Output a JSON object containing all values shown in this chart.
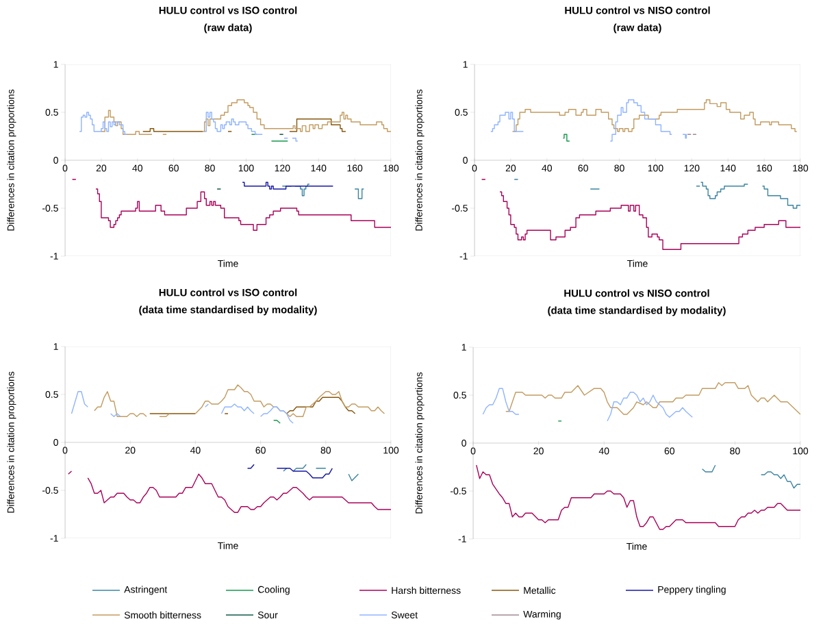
{
  "chart_data": [
    {
      "type": "step",
      "title": "HULU control vs ISO control",
      "subtitle": "(raw data)",
      "xlabel": "Time",
      "ylabel": "Differences in citation proportions",
      "xlim": [
        0,
        180
      ],
      "ylim": [
        -1,
        1
      ],
      "xticks": [
        0,
        20,
        40,
        60,
        80,
        100,
        120,
        140,
        160,
        180
      ],
      "yticks": [
        -1,
        -0.5,
        0,
        0.5,
        1
      ],
      "marker": "none",
      "legend": "bottom",
      "series": [
        {
          "name": "Astringent",
          "color": "#3a84a0",
          "x": [
            120,
            125,
            126,
            127,
            130,
            131,
            132,
            133,
            134,
            135,
            145,
            160,
            162,
            164,
            165
          ],
          "values": [
            -0.27,
            -0.27,
            null,
            -0.27,
            -0.3,
            -0.37,
            -0.3,
            -0.27,
            -0.25,
            -0.25,
            null,
            -0.3,
            -0.4,
            -0.3,
            -0.3
          ]
        },
        {
          "name": "Cooling",
          "color": "#14984c",
          "x": [
            103,
            106,
            110,
            114,
            123
          ],
          "values": [
            0.27,
            0.27,
            null,
            0.2,
            0.2
          ]
        },
        {
          "name": "Harsh bitterness",
          "color": "#a80058",
          "x": [
            4,
            6,
            10,
            17,
            18,
            19,
            20,
            24,
            25,
            27,
            28,
            29,
            30,
            31,
            39,
            40,
            41,
            50,
            53,
            55,
            67,
            73,
            75,
            77,
            78,
            80,
            81,
            82,
            83,
            86,
            88,
            96,
            97,
            104,
            106,
            111,
            113,
            115,
            119,
            128,
            129,
            158,
            171,
            180
          ],
          "values": [
            -0.2,
            -0.2,
            null,
            -0.3,
            -0.35,
            -0.43,
            -0.6,
            -0.63,
            -0.7,
            -0.67,
            -0.63,
            -0.6,
            -0.57,
            -0.53,
            -0.5,
            -0.43,
            -0.53,
            -0.47,
            -0.53,
            -0.57,
            -0.5,
            -0.43,
            -0.33,
            -0.4,
            -0.47,
            -0.43,
            -0.47,
            -0.43,
            -0.47,
            -0.5,
            -0.6,
            -0.63,
            -0.67,
            -0.73,
            -0.67,
            -0.6,
            -0.57,
            -0.53,
            -0.5,
            -0.53,
            -0.57,
            -0.63,
            -0.7,
            -0.7
          ]
        },
        {
          "name": "Metallic",
          "color": "#86560c",
          "x": [
            43,
            47,
            49,
            76,
            83,
            90,
            92,
            100,
            124,
            128,
            147,
            152,
            153,
            155
          ],
          "values": [
            0.3,
            0.33,
            0.3,
            0.3,
            null,
            0.3,
            0.3,
            null,
            0.3,
            0.43,
            0.37,
            0.33,
            0.3,
            0.3
          ]
        },
        {
          "name": "Peppery tingling",
          "color": "#1616a6",
          "x": [
            98,
            99,
            111,
            112,
            113,
            114,
            115,
            122,
            148
          ],
          "values": [
            -0.23,
            -0.27,
            -0.23,
            -0.27,
            -0.3,
            -0.27,
            -0.3,
            -0.27,
            -0.27
          ]
        },
        {
          "name": "Smooth bitterness",
          "color": "#c29b5f",
          "x": [
            20,
            22,
            24,
            25,
            27,
            28,
            29,
            31,
            32,
            39,
            41,
            48,
            51,
            54,
            56,
            65,
            76,
            77,
            78,
            79,
            80,
            86,
            88,
            90,
            92,
            95,
            99,
            101,
            102,
            104,
            106,
            108,
            110,
            126,
            127,
            130,
            131,
            133,
            135,
            137,
            138,
            140,
            142,
            145,
            152,
            153,
            154,
            155,
            156,
            158,
            163,
            172,
            175,
            176,
            178,
            180
          ],
          "values": [
            0.3,
            0.45,
            0.52,
            0.45,
            0.4,
            0.36,
            0.4,
            0.33,
            0.27,
            0.3,
            0.27,
            0.27,
            null,
            0.27,
            0.27,
            null,
            0.3,
            0.4,
            0.43,
            0.36,
            0.43,
            0.47,
            0.5,
            0.57,
            0.6,
            0.63,
            0.6,
            0.57,
            0.55,
            0.5,
            0.43,
            0.37,
            0.33,
            0.36,
            0.33,
            0.3,
            0.36,
            0.3,
            0.37,
            0.33,
            0.37,
            0.33,
            0.37,
            0.4,
            0.47,
            0.5,
            0.43,
            0.47,
            0.43,
            0.4,
            0.37,
            0.4,
            0.37,
            0.33,
            0.3,
            0.3
          ]
        },
        {
          "name": "Sour",
          "color": "#0e5a48",
          "x": [
            84,
            86,
            100,
            118.5,
            120.5
          ],
          "values": [
            -0.3,
            -0.3,
            null,
            0.27,
            0.27
          ]
        },
        {
          "name": "Sweet",
          "color": "#8fb4ff",
          "x": [
            8,
            9,
            10,
            11,
            12,
            13,
            14,
            15,
            16,
            20,
            21,
            22,
            23,
            24,
            25,
            26,
            27,
            28,
            30,
            32,
            33,
            34,
            50,
            77,
            78,
            79,
            80,
            81,
            82,
            83,
            84,
            86,
            87,
            88,
            89,
            91,
            92,
            93,
            94,
            96,
            100,
            101,
            103,
            105,
            109,
            115,
            121,
            123,
            124,
            125.5,
            127.5,
            128.5
          ],
          "values": [
            0.3,
            0.45,
            0.47,
            0.45,
            0.5,
            0.47,
            0.43,
            0.37,
            0.3,
            0.33,
            0.4,
            0.33,
            0.3,
            0.4,
            0.35,
            0.4,
            0.37,
            0.4,
            0.37,
            0.3,
            0.27,
            0.27,
            null,
            0.3,
            0.5,
            0.45,
            0.5,
            0.43,
            0.4,
            0.33,
            0.3,
            0.37,
            0.33,
            0.37,
            0.4,
            0.37,
            0.43,
            0.4,
            0.37,
            0.4,
            0.37,
            0.33,
            0.3,
            0.27,
            0.27,
            null,
            0.23,
            0.23,
            null,
            0.23,
            0.2,
            0.2
          ]
        }
      ]
    },
    {
      "type": "step",
      "title": "HULU control vs NISO control",
      "subtitle": "(raw data)",
      "xlabel": "Time",
      "ylabel": "Differences in citation proportions",
      "xlim": [
        0,
        180
      ],
      "ylim": [
        -1,
        1
      ],
      "xticks": [
        0,
        20,
        40,
        60,
        80,
        100,
        120,
        140,
        160,
        180
      ],
      "yticks": [
        -1,
        -0.5,
        0,
        0.5,
        1
      ],
      "marker": "none",
      "legend": "bottom",
      "series": [
        {
          "color": "#3a84a0",
          "x": [
            22,
            24,
            40,
            64,
            69,
            100,
            122.5,
            124.5,
            124.7,
            125,
            126,
            128,
            129,
            130,
            133,
            134,
            136,
            138,
            149,
            151,
            155,
            159,
            160,
            162,
            169,
            173,
            176,
            178,
            180
          ],
          "values": [
            -0.2,
            -0.2,
            null,
            -0.3,
            -0.3,
            null,
            -0.27,
            -0.27,
            null,
            -0.23,
            -0.27,
            -0.3,
            -0.37,
            -0.4,
            -0.37,
            -0.33,
            -0.3,
            -0.27,
            -0.25,
            -0.25,
            null,
            -0.27,
            -0.3,
            -0.37,
            -0.4,
            -0.47,
            -0.5,
            -0.47,
            -0.47
          ]
        },
        {
          "color": "#14984c",
          "x": [
            49,
            49.5,
            50.5,
            51,
            52.5
          ],
          "values": [
            0.23,
            0.27,
            0.27,
            0.2,
            0.2
          ]
        },
        {
          "color": "#a80058",
          "x": [
            4,
            6,
            10,
            14,
            15,
            16,
            18,
            19,
            20,
            22,
            23,
            24,
            26,
            27,
            28,
            29,
            42,
            45,
            50,
            53,
            56,
            58,
            67,
            75,
            81,
            85,
            86,
            88,
            89,
            91,
            93,
            95,
            96,
            98,
            101,
            102,
            104,
            114,
            146,
            148,
            151,
            155,
            160,
            168,
            172,
            180
          ],
          "values": [
            -0.2,
            -0.2,
            null,
            -0.33,
            -0.37,
            -0.43,
            -0.5,
            -0.57,
            -0.67,
            -0.7,
            -0.77,
            -0.83,
            -0.8,
            -0.83,
            -0.77,
            -0.73,
            -0.83,
            -0.8,
            -0.73,
            -0.7,
            -0.6,
            -0.57,
            -0.53,
            -0.5,
            -0.47,
            -0.53,
            -0.47,
            -0.53,
            -0.47,
            -0.57,
            -0.6,
            -0.7,
            -0.8,
            -0.77,
            -0.8,
            -0.83,
            -0.93,
            -0.87,
            -0.8,
            -0.77,
            -0.73,
            -0.7,
            -0.67,
            -0.63,
            -0.7,
            -0.7
          ]
        },
        {
          "color": "#c29b5f",
          "x": [
            21,
            23,
            24,
            25,
            28,
            31,
            47,
            50,
            52,
            56,
            59,
            60,
            62,
            67,
            70,
            74,
            76,
            77,
            79,
            80,
            82,
            83,
            85,
            87,
            88,
            91,
            96,
            102,
            103,
            112,
            127,
            128,
            130,
            134,
            136,
            139,
            141,
            147,
            149,
            152,
            154,
            155,
            158,
            163,
            164,
            168,
            175,
            177,
            178
          ],
          "values": [
            0.3,
            0.37,
            0.43,
            0.5,
            0.53,
            0.5,
            0.47,
            0.5,
            0.53,
            0.47,
            0.5,
            0.53,
            0.47,
            0.53,
            0.5,
            0.43,
            0.37,
            0.33,
            0.3,
            0.33,
            0.3,
            0.33,
            0.3,
            0.33,
            0.43,
            0.47,
            0.43,
            0.47,
            0.5,
            0.53,
            0.6,
            0.63,
            0.59,
            0.56,
            0.6,
            0.53,
            0.5,
            0.43,
            0.47,
            0.5,
            0.43,
            0.37,
            0.4,
            0.37,
            0.4,
            0.37,
            0.33,
            0.3,
            0.3
          ]
        },
        {
          "color": "#8fb4ff",
          "x": [
            9,
            10,
            11,
            13,
            14,
            17,
            19,
            20,
            21,
            22,
            27,
            50,
            75,
            76,
            78,
            79,
            81,
            82,
            84,
            85,
            88,
            90,
            92,
            94,
            98,
            100,
            103,
            108,
            109,
            112,
            115,
            116.5,
            117,
            117.2
          ],
          "values": [
            0.3,
            0.33,
            0.37,
            0.4,
            0.47,
            0.5,
            0.43,
            0.5,
            0.43,
            0.3,
            0.3,
            null,
            0.2,
            0.27,
            0.4,
            0.47,
            0.55,
            0.5,
            0.6,
            0.63,
            0.6,
            0.57,
            0.5,
            0.43,
            0.43,
            0.37,
            0.3,
            0.27,
            0.27,
            null,
            0.27,
            0.23,
            0.27,
            0.27
          ]
        },
        {
          "name": "Warming",
          "color": "#a08896",
          "x": [
            117.6,
            119.6,
            120.1,
            120.6,
            122.5
          ],
          "values": [
            0.27,
            0.27,
            null,
            0.27,
            0.27
          ]
        }
      ]
    },
    {
      "type": "line",
      "title": "HULU control vs ISO control",
      "subtitle": "(data time standardised by modality)",
      "xlabel": "Time",
      "ylabel": "Differences in citation proportions",
      "xlim": [
        0,
        100
      ],
      "ylim": [
        -1,
        1
      ],
      "xticks": [
        0,
        20,
        40,
        60,
        80,
        100
      ],
      "yticks": [
        -1,
        -0.5,
        0,
        0.5,
        1
      ],
      "marker": "none",
      "series": [
        {
          "color": "#3a84a0",
          "x": [
            67,
            68,
            69,
            70,
            71,
            73,
            74,
            75,
            77,
            80,
            84,
            87,
            88,
            90
          ],
          "values": [
            -0.3,
            -0.27,
            null,
            -0.3,
            -0.27,
            -0.27,
            -0.23,
            null,
            -0.27,
            -0.27,
            null,
            -0.33,
            -0.4,
            -0.33
          ]
        },
        {
          "color": "#14984c",
          "x": [
            64,
            65,
            66
          ],
          "values": [
            0.23,
            0.23,
            0.2
          ]
        },
        {
          "color": "#a80058",
          "x": [
            1,
            2,
            4,
            7,
            8,
            9,
            10,
            11,
            12,
            13,
            14,
            15,
            16,
            18,
            19,
            20,
            21,
            22,
            23,
            24,
            25,
            26,
            27,
            28,
            29,
            34,
            35,
            36,
            37,
            39,
            40,
            41,
            42,
            43,
            45,
            46,
            47,
            48,
            49,
            50,
            51,
            52,
            53,
            54,
            56,
            57,
            58,
            59,
            60,
            61,
            62,
            63,
            64,
            65,
            66,
            67,
            68,
            69,
            70,
            71,
            72,
            73,
            74,
            75,
            76,
            85,
            86,
            87,
            94,
            95,
            96,
            100
          ],
          "values": [
            -0.33,
            -0.3,
            null,
            -0.37,
            -0.43,
            -0.53,
            -0.53,
            -0.5,
            -0.63,
            -0.6,
            -0.57,
            -0.57,
            -0.53,
            -0.53,
            -0.57,
            -0.6,
            -0.6,
            -0.63,
            -0.63,
            -0.57,
            -0.53,
            -0.47,
            -0.47,
            -0.5,
            -0.57,
            -0.57,
            -0.53,
            -0.53,
            -0.47,
            -0.47,
            -0.4,
            -0.33,
            -0.37,
            -0.43,
            -0.43,
            -0.5,
            -0.57,
            -0.57,
            -0.6,
            -0.67,
            -0.7,
            -0.73,
            -0.73,
            -0.67,
            -0.67,
            -0.7,
            -0.7,
            -0.67,
            -0.67,
            -0.63,
            -0.6,
            -0.57,
            -0.57,
            -0.6,
            -0.57,
            -0.53,
            -0.53,
            -0.5,
            -0.47,
            -0.47,
            -0.5,
            -0.53,
            -0.57,
            -0.6,
            -0.57,
            -0.57,
            -0.6,
            -0.63,
            -0.63,
            -0.67,
            -0.7,
            -0.7
          ]
        },
        {
          "color": "#86560c",
          "x": [
            26,
            40,
            45,
            49,
            50,
            60,
            68,
            69,
            70,
            71,
            76,
            77,
            78,
            79,
            84,
            85,
            86,
            87,
            88,
            89
          ],
          "values": [
            0.3,
            0.3,
            null,
            0.3,
            0.3,
            null,
            0.3,
            0.33,
            0.33,
            0.37,
            0.37,
            0.43,
            0.43,
            0.47,
            0.47,
            0.43,
            0.37,
            0.33,
            0.33,
            0.3
          ]
        },
        {
          "color": "#1616a6",
          "x": [
            56,
            57,
            58,
            61,
            65,
            69,
            70,
            74,
            75,
            76,
            79,
            80,
            81,
            82
          ],
          "values": [
            -0.27,
            -0.27,
            -0.23,
            null,
            -0.27,
            -0.27,
            -0.3,
            -0.3,
            -0.33,
            -0.37,
            -0.37,
            -0.33,
            -0.33,
            -0.27
          ]
        },
        {
          "color": "#c29b5f",
          "x": [
            9,
            10,
            11,
            12,
            13,
            14,
            15,
            16,
            19,
            20,
            21,
            22,
            23,
            24,
            25,
            27,
            29,
            31,
            32,
            36,
            40,
            42,
            43,
            44,
            45,
            47,
            48,
            49,
            50,
            52,
            53,
            54,
            55,
            56,
            57,
            58,
            60,
            61,
            62,
            63,
            64,
            65,
            66,
            67,
            68,
            69,
            70,
            71,
            73,
            74,
            75,
            76,
            77,
            78,
            79,
            80,
            81,
            82,
            83,
            84,
            85,
            86,
            87,
            88,
            89,
            90,
            93,
            94,
            95,
            96,
            97,
            98
          ],
          "values": [
            0.33,
            0.37,
            0.37,
            0.47,
            0.53,
            0.43,
            0.43,
            0.27,
            0.27,
            0.3,
            0.3,
            0.27,
            0.3,
            0.3,
            0.27,
            null,
            0.27,
            0.27,
            0.3,
            null,
            0.3,
            0.37,
            0.43,
            0.43,
            0.4,
            0.4,
            0.43,
            0.47,
            0.55,
            0.55,
            0.6,
            0.57,
            0.53,
            0.53,
            0.5,
            0.43,
            0.43,
            0.37,
            0.4,
            0.4,
            0.37,
            0.37,
            0.33,
            0.33,
            0.3,
            0.27,
            0.3,
            0.27,
            0.27,
            0.37,
            0.37,
            0.4,
            0.43,
            0.47,
            0.5,
            0.53,
            0.53,
            0.5,
            0.5,
            0.53,
            0.43,
            0.37,
            0.37,
            0.4,
            0.4,
            0.37,
            0.37,
            0.33,
            0.33,
            0.37,
            0.33,
            0.3
          ]
        },
        {
          "color": "#8fb4ff",
          "x": [
            2,
            4,
            5,
            6,
            7,
            10,
            14,
            15,
            16,
            17,
            30,
            43,
            44,
            46,
            48,
            49,
            51,
            52,
            53,
            54,
            55,
            56,
            57,
            58,
            59,
            60,
            61,
            62,
            63,
            64,
            65,
            66,
            67,
            68,
            69,
            70
          ],
          "values": [
            0.3,
            0.53,
            0.53,
            0.4,
            0.37,
            null,
            0.3,
            0.27,
            0.3,
            0.27,
            null,
            0.37,
            0.4,
            null,
            0.3,
            0.37,
            0.37,
            0.4,
            0.37,
            0.37,
            0.33,
            0.37,
            0.33,
            0.3,
            null,
            0.27,
            0.3,
            0.3,
            0.33,
            0.37,
            0.37,
            0.33,
            0.33,
            0.3,
            0.23,
            0.2
          ]
        }
      ]
    },
    {
      "type": "line",
      "title": "HULU control vs NISO control",
      "subtitle": "(data time standardised by modality)",
      "xlabel": "Time",
      "ylabel": "Differences in citation proportions",
      "xlim": [
        0,
        100
      ],
      "ylim": [
        -1,
        1
      ],
      "xticks": [
        0,
        20,
        40,
        60,
        80,
        100
      ],
      "yticks": [
        -1,
        -0.5,
        0,
        0.5,
        1
      ],
      "marker": "none",
      "series": [
        {
          "color": "#3a84a0",
          "x": [
            70,
            71,
            73,
            74,
            80,
            88,
            89,
            90,
            91,
            92,
            93,
            94,
            95,
            96,
            97,
            98,
            99,
            100
          ],
          "values": [
            -0.27,
            -0.3,
            -0.3,
            -0.23,
            null,
            -0.33,
            -0.33,
            -0.3,
            -0.3,
            -0.33,
            -0.33,
            -0.37,
            -0.33,
            -0.4,
            -0.4,
            -0.47,
            -0.43,
            -0.43
          ]
        },
        {
          "color": "#14984c",
          "x": [
            26,
            27
          ],
          "values": [
            0.23,
            0.23
          ]
        },
        {
          "color": "#a80058",
          "x": [
            1,
            2,
            3,
            4,
            5,
            6,
            8,
            9,
            10,
            11,
            12,
            13,
            14,
            15,
            16,
            18,
            20,
            21,
            22,
            23,
            26,
            27,
            28,
            29,
            30,
            36,
            37,
            40,
            41,
            42,
            43,
            45,
            46,
            47,
            48,
            49,
            50,
            51,
            52,
            53,
            54,
            55,
            57,
            58,
            59,
            60,
            62,
            64,
            65,
            74,
            75,
            80,
            81,
            82,
            83,
            84,
            85,
            86,
            87,
            88,
            89,
            90,
            92,
            93,
            94,
            96,
            100
          ],
          "values": [
            -0.23,
            -0.37,
            -0.3,
            -0.33,
            -0.33,
            -0.43,
            -0.53,
            -0.57,
            -0.63,
            -0.63,
            -0.77,
            -0.73,
            -0.77,
            -0.77,
            -0.73,
            -0.73,
            -0.8,
            -0.8,
            -0.83,
            -0.8,
            -0.8,
            -0.7,
            -0.67,
            -0.67,
            -0.57,
            -0.57,
            -0.53,
            -0.53,
            -0.5,
            -0.5,
            -0.53,
            -0.53,
            -0.57,
            -0.67,
            -0.6,
            -0.6,
            -0.77,
            -0.87,
            -0.87,
            -0.83,
            -0.77,
            -0.77,
            -0.9,
            -0.9,
            -0.87,
            -0.87,
            -0.8,
            -0.8,
            -0.83,
            -0.83,
            -0.87,
            -0.87,
            -0.8,
            -0.77,
            -0.77,
            -0.73,
            -0.73,
            -0.7,
            -0.73,
            -0.7,
            -0.7,
            -0.67,
            -0.67,
            -0.63,
            -0.63,
            -0.7,
            -0.7
          ]
        },
        {
          "color": "#c29b5f",
          "x": [
            10,
            11,
            13,
            15,
            16,
            21,
            22,
            23,
            24,
            25,
            27,
            28,
            30,
            32,
            34,
            37,
            39,
            40,
            41,
            42,
            44,
            46,
            47,
            49,
            50,
            52,
            53,
            55,
            56,
            57,
            61,
            62,
            64,
            65,
            69,
            70,
            74,
            75,
            76,
            77,
            80,
            81,
            83,
            84,
            85,
            87,
            88,
            89,
            90,
            92,
            94,
            96,
            100
          ],
          "values": [
            0.33,
            0.33,
            0.53,
            0.53,
            0.5,
            0.5,
            0.47,
            0.5,
            0.5,
            0.47,
            0.47,
            0.53,
            0.53,
            0.6,
            0.5,
            0.57,
            0.57,
            0.53,
            0.43,
            0.37,
            0.37,
            0.3,
            0.3,
            0.37,
            0.43,
            0.4,
            0.43,
            0.37,
            0.37,
            0.43,
            0.43,
            0.47,
            0.47,
            0.5,
            0.5,
            0.57,
            0.57,
            0.63,
            0.6,
            0.63,
            0.63,
            0.57,
            0.57,
            0.6,
            0.5,
            0.43,
            0.47,
            0.47,
            0.43,
            0.5,
            0.43,
            0.43,
            0.3
          ]
        },
        {
          "color": "#8fb4ff",
          "x": [
            3,
            4,
            5,
            6,
            7,
            8,
            9,
            10,
            11,
            12,
            13,
            14,
            30,
            41,
            42,
            43,
            44,
            45,
            46,
            47,
            48,
            49,
            50,
            51,
            52,
            53,
            54,
            55,
            56,
            57,
            58,
            59,
            60,
            61,
            62,
            63,
            64,
            65,
            66,
            67
          ],
          "values": [
            0.3,
            0.37,
            0.4,
            0.4,
            0.47,
            0.57,
            0.57,
            0.43,
            0.33,
            0.33,
            0.3,
            0.3,
            null,
            0.23,
            0.3,
            0.43,
            0.43,
            0.4,
            0.47,
            0.47,
            0.53,
            0.53,
            0.5,
            0.43,
            0.47,
            0.4,
            0.43,
            0.5,
            0.43,
            0.4,
            0.37,
            0.3,
            0.27,
            0.3,
            0.33,
            0.33,
            0.37,
            0.33,
            0.3,
            0.27
          ]
        }
      ]
    }
  ]
}
